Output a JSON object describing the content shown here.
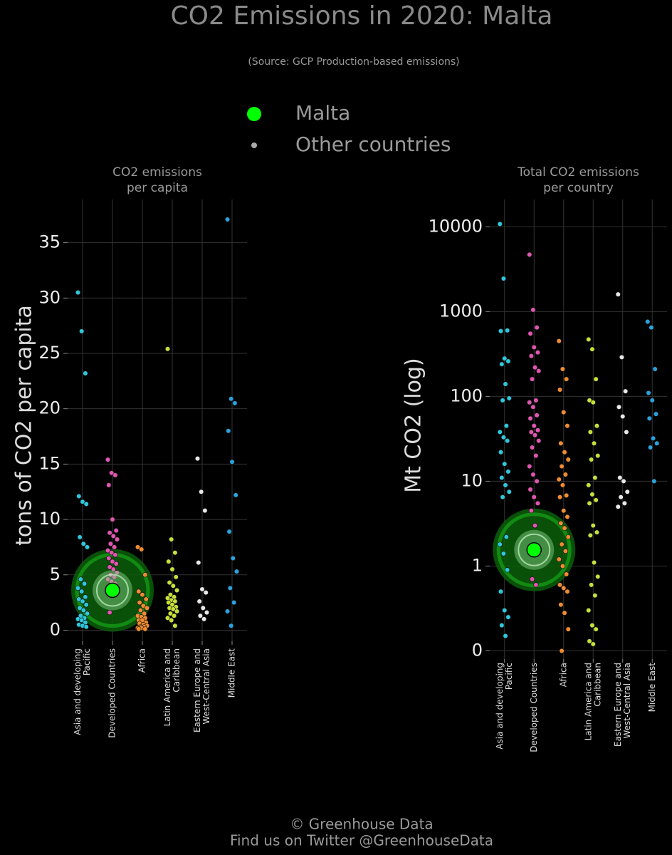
{
  "title": "CO2 Emissions in 2020: Malta",
  "subtitle": "(Source: GCP Production-based emissions)",
  "legend": [
    {
      "name": "Malta",
      "color": "#00ff00"
    },
    {
      "name": "Other countries",
      "color": "#aaaaaa"
    }
  ],
  "footer": [
    "© Greenhouse Data",
    "Find us on Twitter @GreenhouseData"
  ],
  "chart_data": [
    {
      "type": "strip",
      "title": [
        "CO2 emissions",
        "per capita"
      ],
      "ylabel": "tons of CO2 per capita",
      "categories": [
        [
          "Asia and developing",
          "Pacific"
        ],
        [
          "Developed Countries"
        ],
        [
          "Africa"
        ],
        [
          "Latin America and",
          "Caribbean"
        ],
        [
          "Eastern Europe and",
          "West-Central Asia"
        ],
        [
          "Middle East"
        ]
      ],
      "colors": [
        "#2ec8dc",
        "#e056b0",
        "#f08c30",
        "#c8e03a",
        "#e8e8e8",
        "#2aa2dc"
      ],
      "values": [
        [
          30.5,
          27,
          23.2,
          12.1,
          11.6,
          11.4,
          8.4,
          7.8,
          7.5,
          4.6,
          4.2,
          3.8,
          3.5,
          3.0,
          2.8,
          2.6,
          2.3,
          2.0,
          1.8,
          1.5,
          1.3,
          1.1,
          1.0,
          0.9,
          0.7,
          0.5,
          0.4,
          0.3
        ],
        [
          15.4,
          14.2,
          14.0,
          13.1,
          10.0,
          9.0,
          8.8,
          8.5,
          8.2,
          7.8,
          7.5,
          7.2,
          7.0,
          6.8,
          6.5,
          6.2,
          6.0,
          5.7,
          5.5,
          5.2,
          5.0,
          4.8,
          4.6,
          4.4,
          4.2,
          4.0,
          3.8,
          3.3,
          1.6
        ],
        [
          7.5,
          7.3,
          5.0,
          3.5,
          3.2,
          2.8,
          2.5,
          2.2,
          2.0,
          1.8,
          1.5,
          1.3,
          1.2,
          1.1,
          0.9,
          0.9,
          0.7,
          0.6,
          0.5,
          0.4,
          0.3,
          0.3,
          0.2,
          0.2,
          0.1,
          0.1
        ],
        [
          25.4,
          8.2,
          7.0,
          6.2,
          5.5,
          4.8,
          4.3,
          4.0,
          3.6,
          3.2,
          3.0,
          2.9,
          2.7,
          2.6,
          2.5,
          2.3,
          2.1,
          2.0,
          1.9,
          1.7,
          1.5,
          1.3,
          1.1,
          0.9,
          0.4
        ],
        [
          15.5,
          12.5,
          10.8,
          6.1,
          3.7,
          3.4,
          2.6,
          2.0,
          1.6,
          1.3,
          1.0
        ],
        [
          37.1,
          20.9,
          20.5,
          18.0,
          15.2,
          12.2,
          8.9,
          6.5,
          5.3,
          3.8,
          2.5,
          1.7,
          0.4
        ]
      ],
      "highlight": [
        null,
        3.6,
        null,
        null,
        null,
        null
      ],
      "highlight_color": "#00ff00",
      "ylim": [
        -1,
        38.9
      ],
      "yticks": [
        0,
        5,
        10,
        15,
        20,
        25,
        30,
        35
      ],
      "grid": true
    },
    {
      "type": "strip",
      "title": [
        "Total CO2 emissions",
        "per country"
      ],
      "ylabel": "Mt CO2 (log)",
      "log": true,
      "categories": [
        [
          "Asia and developing",
          "Pacific"
        ],
        [
          "Developed Countries"
        ],
        [
          "Africa"
        ],
        [
          "Latin America and",
          "Caribbean"
        ],
        [
          "Eastern Europe and",
          "West-Central Asia"
        ],
        [
          "Middle East"
        ]
      ],
      "colors": [
        "#2ec8dc",
        "#e056b0",
        "#f08c30",
        "#c8e03a",
        "#e8e8e8",
        "#2aa2dc"
      ],
      "values": [
        [
          10800,
          2450,
          600,
          590,
          280,
          260,
          240,
          140,
          95,
          90,
          45,
          38,
          33,
          30,
          22,
          16,
          13,
          11,
          9,
          7.5,
          6.5,
          2.2,
          1.8,
          1.4,
          0.9,
          0.5,
          0.3,
          0.25,
          0.2,
          0.15
        ],
        [
          4700,
          1050,
          650,
          550,
          380,
          330,
          300,
          220,
          200,
          160,
          90,
          85,
          75,
          60,
          55,
          45,
          40,
          38,
          35,
          30,
          25,
          20,
          15,
          12,
          10,
          8,
          6.5,
          5.5,
          4.5,
          3,
          1.5,
          0.7,
          0.6
        ],
        [
          450,
          210,
          160,
          120,
          65,
          45,
          28,
          22,
          18,
          15,
          12,
          10.5,
          9,
          6.8,
          6.5,
          4.5,
          3.8,
          3.2,
          2.8,
          2.2,
          1.8,
          1.5,
          1.2,
          1.0,
          0.8,
          0.6,
          0.55,
          0.5,
          0.35,
          0.28,
          0.18,
          0.1
        ],
        [
          470,
          360,
          160,
          90,
          85,
          45,
          38,
          28,
          20,
          18,
          11,
          9,
          7,
          6,
          5.5,
          3,
          2.5,
          2.3,
          1.1,
          0.75,
          0.6,
          0.45,
          0.3,
          0.2,
          0.18,
          0.13,
          0.12
        ],
        [
          1600,
          290,
          115,
          75,
          58,
          38,
          11,
          10,
          7.5,
          6.5,
          5.5,
          5
        ],
        [
          760,
          650,
          210,
          110,
          90,
          62,
          55,
          32,
          28,
          25,
          10
        ]
      ],
      "highlight": [
        null,
        1.55,
        null,
        null,
        null,
        null
      ],
      "highlight_color": "#00ff00",
      "ylim": [
        0.08,
        21000
      ],
      "yticks": [
        {
          "value": 0.1,
          "label": "0"
        },
        1,
        10,
        100,
        1000,
        10000
      ],
      "grid": true
    }
  ]
}
